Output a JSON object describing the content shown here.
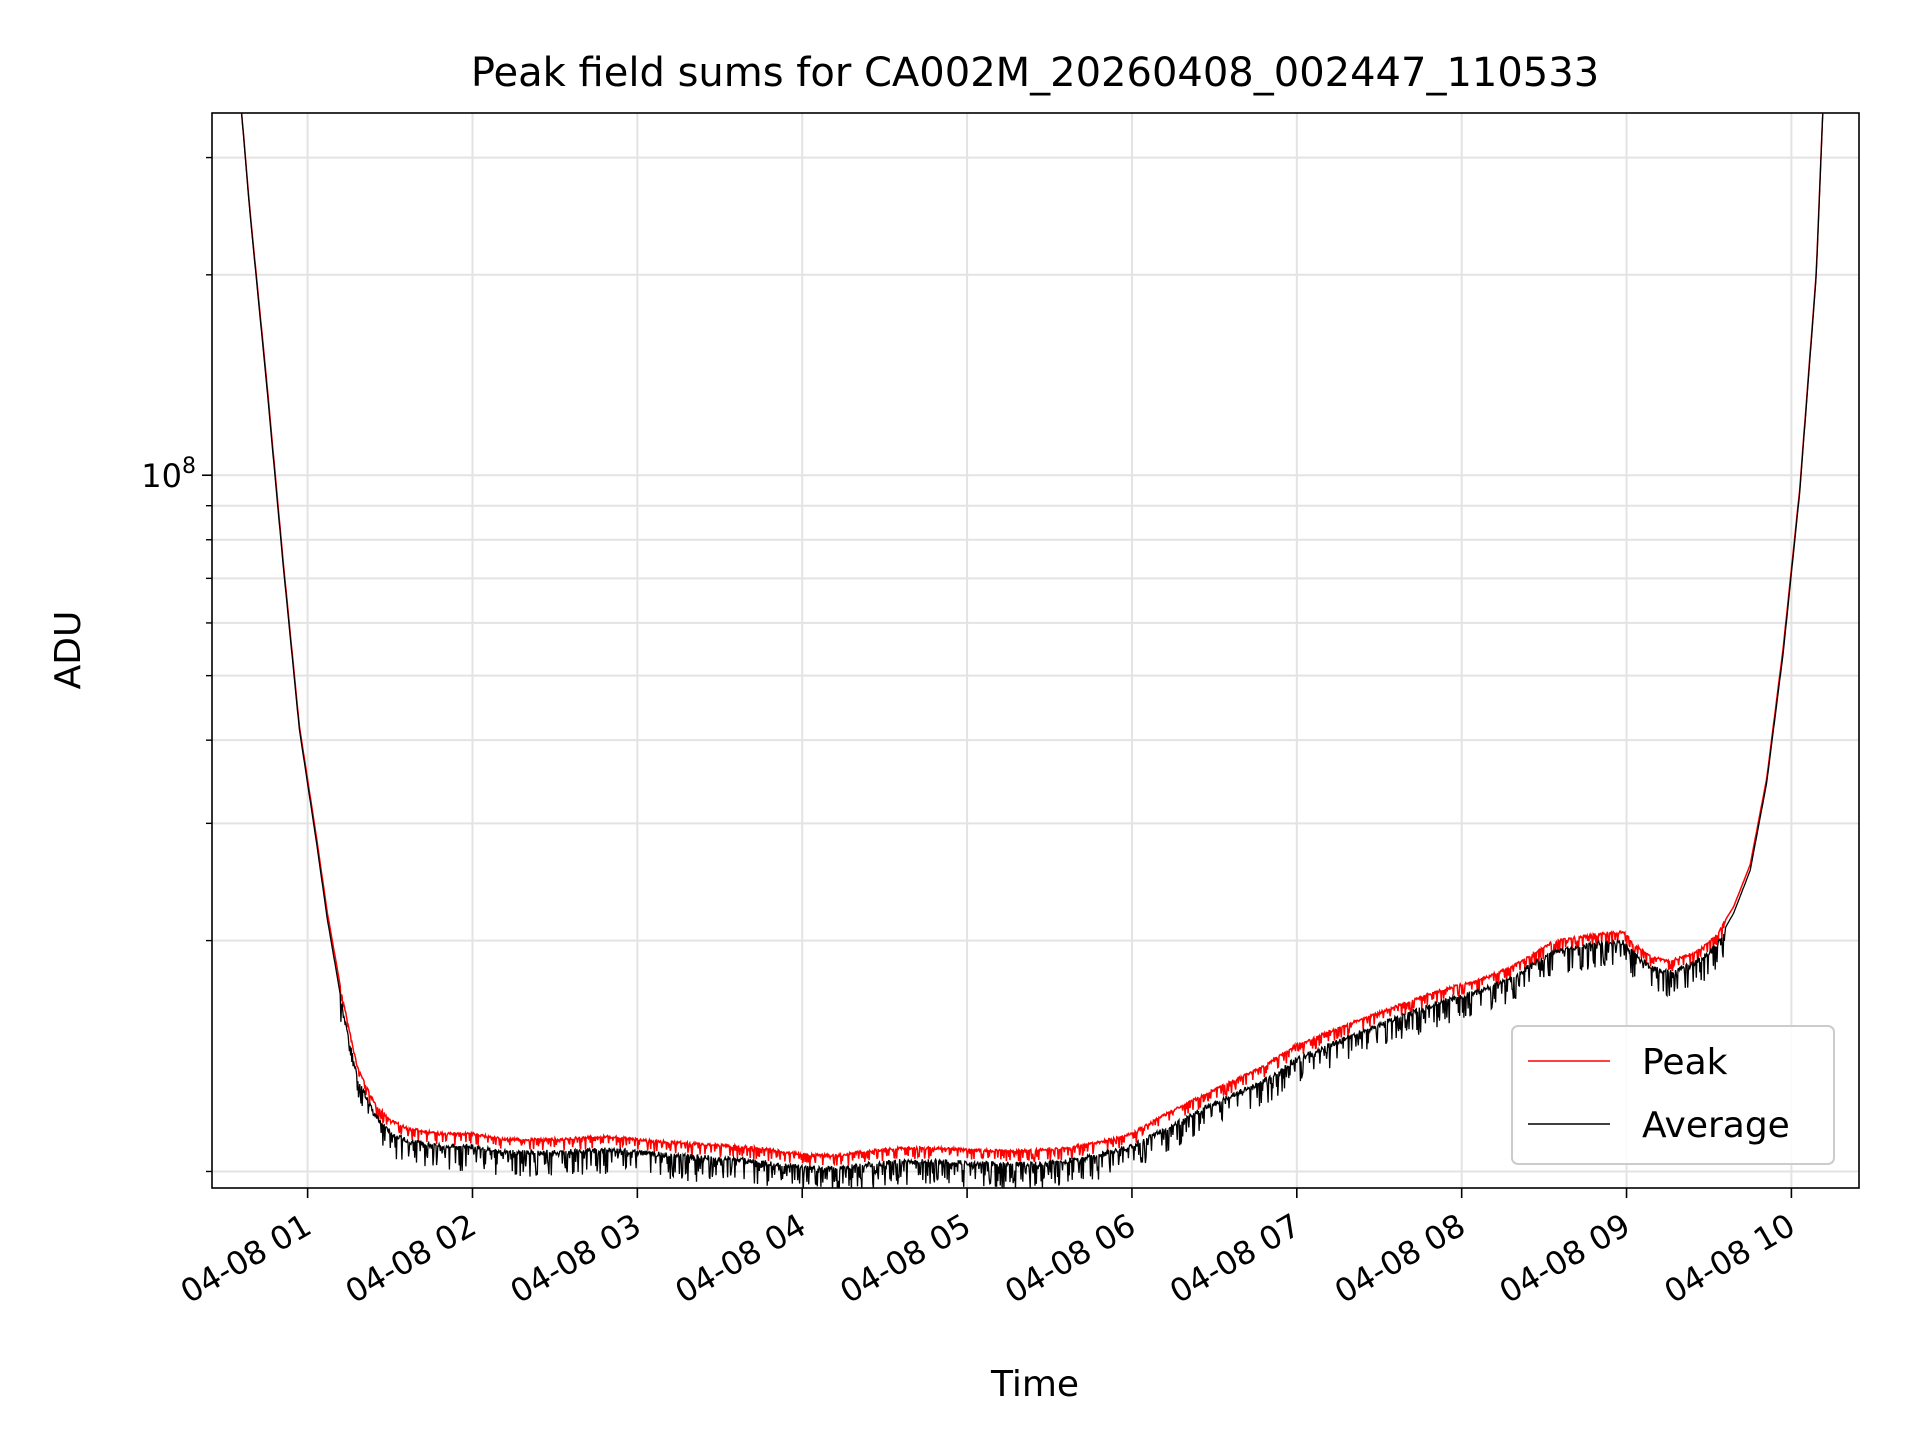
{
  "chart_data": {
    "type": "line",
    "title": "Peak field sums for CA002M_20260408_002447_110533",
    "xlabel": "Time",
    "ylabel": "ADU",
    "yscale": "log",
    "grid": true,
    "legend_position": "lower-right",
    "ylim": [
      8500000,
      350000000
    ],
    "xlim_hours": [
      0.42,
      10.41
    ],
    "x_ticks": [
      {
        "hour": 1,
        "label": "04-08 01"
      },
      {
        "hour": 2,
        "label": "04-08 02"
      },
      {
        "hour": 3,
        "label": "04-08 03"
      },
      {
        "hour": 4,
        "label": "04-08 04"
      },
      {
        "hour": 5,
        "label": "04-08 05"
      },
      {
        "hour": 6,
        "label": "04-08 06"
      },
      {
        "hour": 7,
        "label": "04-08 07"
      },
      {
        "hour": 8,
        "label": "04-08 08"
      },
      {
        "hour": 9,
        "label": "04-08 09"
      },
      {
        "hour": 10,
        "label": "04-08 10"
      }
    ],
    "y_major_ticks": [
      {
        "value": 100000000,
        "base": "10",
        "exponent": "8"
      }
    ],
    "y_minor_ticks": [
      9000000,
      20000000,
      30000000,
      40000000,
      50000000,
      60000000,
      70000000,
      80000000,
      90000000,
      200000000,
      300000000
    ],
    "series": [
      {
        "name": "Peak",
        "color": "#ff0000",
        "x_hours": [
          0.58,
          0.65,
          0.75,
          0.85,
          0.95,
          1.05,
          1.12,
          1.2,
          1.3,
          1.4,
          1.5,
          1.6,
          1.8,
          2.0,
          2.2,
          2.5,
          2.8,
          3.0,
          3.2,
          3.5,
          3.75,
          4.0,
          4.2,
          4.4,
          4.6,
          4.8,
          5.0,
          5.3,
          5.6,
          5.8,
          6.0,
          6.2,
          6.5,
          6.8,
          7.0,
          7.3,
          7.6,
          7.9,
          8.1,
          8.3,
          8.45,
          8.55,
          8.7,
          8.85,
          8.98,
          9.05,
          9.15,
          9.25,
          9.35,
          9.45,
          9.55,
          9.65,
          9.75,
          9.85,
          9.95,
          10.05,
          10.15,
          10.2
        ],
        "values": [
          400000000,
          250000000,
          140000000,
          75000000,
          42000000,
          29000000,
          22000000,
          17000000,
          13000000,
          11500000,
          10800000,
          10500000,
          10300000,
          10300000,
          10100000,
          10100000,
          10200000,
          10100000,
          10000000,
          9900000,
          9800000,
          9600000,
          9550000,
          9700000,
          9800000,
          9800000,
          9750000,
          9700000,
          9800000,
          10000000,
          10300000,
          11000000,
          12000000,
          13000000,
          14000000,
          15000000,
          16000000,
          17000000,
          17500000,
          18300000,
          19300000,
          20000000,
          20300000,
          20600000,
          20700000,
          19800000,
          19000000,
          18700000,
          19000000,
          19500000,
          20500000,
          22500000,
          26000000,
          35000000,
          55000000,
          95000000,
          200000000,
          400000000
        ]
      },
      {
        "name": "Average",
        "color": "#000000",
        "x_hours": [
          0.58,
          0.65,
          0.75,
          0.85,
          0.95,
          1.05,
          1.12,
          1.2,
          1.3,
          1.4,
          1.5,
          1.6,
          1.8,
          2.0,
          2.2,
          2.5,
          2.8,
          3.0,
          3.2,
          3.5,
          3.75,
          4.0,
          4.2,
          4.4,
          4.6,
          4.8,
          5.0,
          5.3,
          5.6,
          5.8,
          6.0,
          6.2,
          6.5,
          6.8,
          7.0,
          7.3,
          7.6,
          7.9,
          8.1,
          8.3,
          8.45,
          8.55,
          8.7,
          8.85,
          8.98,
          9.05,
          9.15,
          9.25,
          9.35,
          9.45,
          9.55,
          9.65,
          9.75,
          9.85,
          9.95,
          10.05,
          10.15,
          10.2
        ],
        "values": [
          400000000,
          248000000,
          138000000,
          74000000,
          41500000,
          28500000,
          21500000,
          16500000,
          12600000,
          11100000,
          10400000,
          10100000,
          9900000,
          9900000,
          9700000,
          9700000,
          9800000,
          9700000,
          9600000,
          9500000,
          9400000,
          9200000,
          9150000,
          9300000,
          9400000,
          9400000,
          9350000,
          9300000,
          9400000,
          9600000,
          9900000,
          10500000,
          11500000,
          12400000,
          13400000,
          14400000,
          15400000,
          16400000,
          16900000,
          17700000,
          18700000,
          19400000,
          19700000,
          20000000,
          20100000,
          19200000,
          18400000,
          18100000,
          18400000,
          18900000,
          19900000,
          22000000,
          25500000,
          34500000,
          54000000,
          94000000,
          198000000,
          400000000
        ]
      }
    ]
  }
}
